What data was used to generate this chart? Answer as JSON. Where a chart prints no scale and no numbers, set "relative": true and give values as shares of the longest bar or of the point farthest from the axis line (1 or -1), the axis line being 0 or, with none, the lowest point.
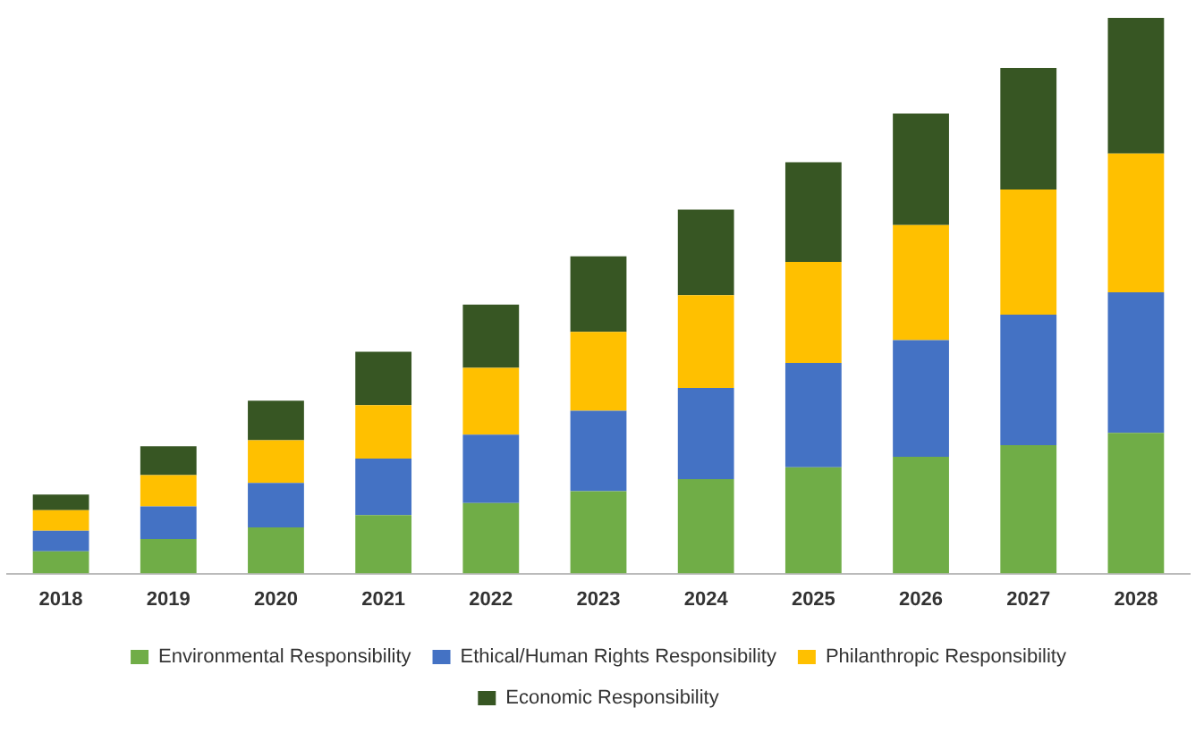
{
  "chart_data": {
    "type": "bar",
    "stacked": true,
    "relative": true,
    "grid": false,
    "legend": "bottom",
    "categories": [
      "2018",
      "2019",
      "2020",
      "2021",
      "2022",
      "2023",
      "2024",
      "2025",
      "2026",
      "2027",
      "2028"
    ],
    "series": [
      {
        "name": "Environmental Responsibility",
        "color": "#70ad47",
        "values": [
          0.04,
          0.062,
          0.083,
          0.105,
          0.127,
          0.148,
          0.17,
          0.191,
          0.21,
          0.231,
          0.253
        ]
      },
      {
        "name": "Ethical/Human Rights Responsibility",
        "color": "#4472c4",
        "values": [
          0.037,
          0.059,
          0.08,
          0.102,
          0.123,
          0.145,
          0.164,
          0.188,
          0.21,
          0.235,
          0.253
        ]
      },
      {
        "name": "Philanthropic Responsibility",
        "color": "#ffc000",
        "values": [
          0.037,
          0.056,
          0.077,
          0.096,
          0.12,
          0.142,
          0.167,
          0.182,
          0.207,
          0.225,
          0.25
        ]
      },
      {
        "name": "Economic Responsibility",
        "color": "#375623",
        "values": [
          0.028,
          0.052,
          0.071,
          0.096,
          0.114,
          0.136,
          0.154,
          0.179,
          0.201,
          0.219,
          0.244
        ]
      }
    ]
  }
}
